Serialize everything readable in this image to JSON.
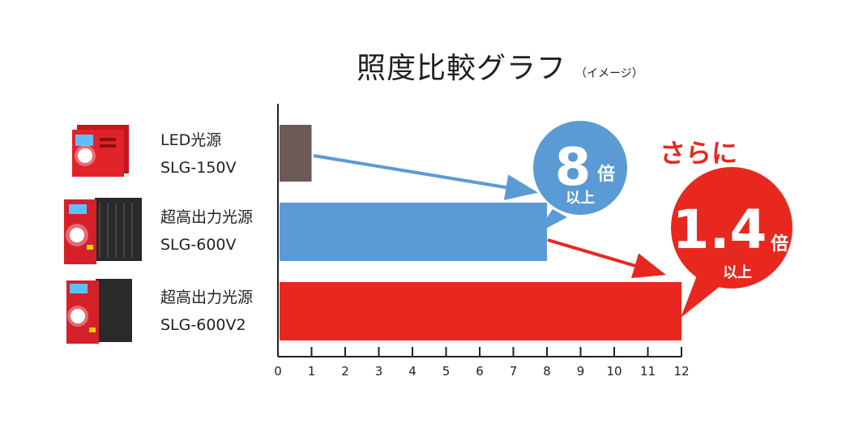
{
  "title": "照度比較グラフ",
  "subtitle": "（イメージ）",
  "products": [
    {
      "name": "LED光源",
      "model": "SLG-150V",
      "image_icon": "red-light-source-unit-icon"
    },
    {
      "name": "超高出力光源",
      "model": "SLG-600V",
      "image_icon": "large-red-black-light-source-unit-icon"
    },
    {
      "name": "超高出力光源",
      "model": "SLG-600V2",
      "image_icon": "red-black-light-source-unit-icon"
    }
  ],
  "callouts": {
    "first": {
      "value": "8",
      "unit": "倍",
      "suffix": "以上"
    },
    "second": {
      "value": "1.4",
      "unit": "倍",
      "suffix": "以上"
    },
    "more": "さらに"
  },
  "colors": {
    "bar1": "#6b5a55",
    "bar2": "#5b9bd5",
    "bar3": "#e8281e",
    "callout_blue": "#5b9bd5",
    "callout_red": "#e8281e",
    "emphasis_red": "#e8281e"
  },
  "chart_data": {
    "type": "bar",
    "orientation": "horizontal",
    "title": "照度比較グラフ",
    "categories": [
      "SLG-150V",
      "SLG-600V",
      "SLG-600V2"
    ],
    "values": [
      1,
      8,
      12
    ],
    "xlim": [
      0,
      12
    ],
    "xticks": [
      0,
      1,
      2,
      3,
      4,
      5,
      6,
      7,
      8,
      9,
      10,
      11,
      12
    ],
    "grid": false
  }
}
